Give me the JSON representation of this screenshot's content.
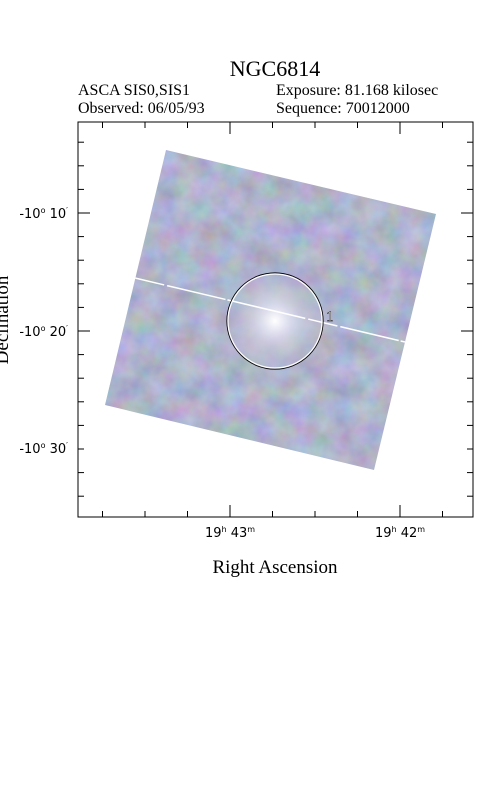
{
  "header": {
    "title": "NGC6814",
    "info_left": [
      "ASCA SIS0,SIS1",
      "Observed: 06/05/93"
    ],
    "info_right": [
      "Exposure: 81.168 kilosec",
      "Sequence: 70012000"
    ]
  },
  "plot": {
    "source_label": "1",
    "y_axis_label": "Declination",
    "x_axis_label": "Right Ascension",
    "dec_ticks": [
      [
        "-10",
        "o",
        " 10",
        "′"
      ],
      [
        "-10",
        "o",
        " 20",
        "′"
      ],
      [
        "-10",
        "o",
        " 30",
        "′"
      ]
    ],
    "ra_ticks": [
      [
        "19",
        "h",
        " 43",
        "m"
      ],
      [
        "19",
        "h",
        " 42",
        "m"
      ]
    ]
  }
}
